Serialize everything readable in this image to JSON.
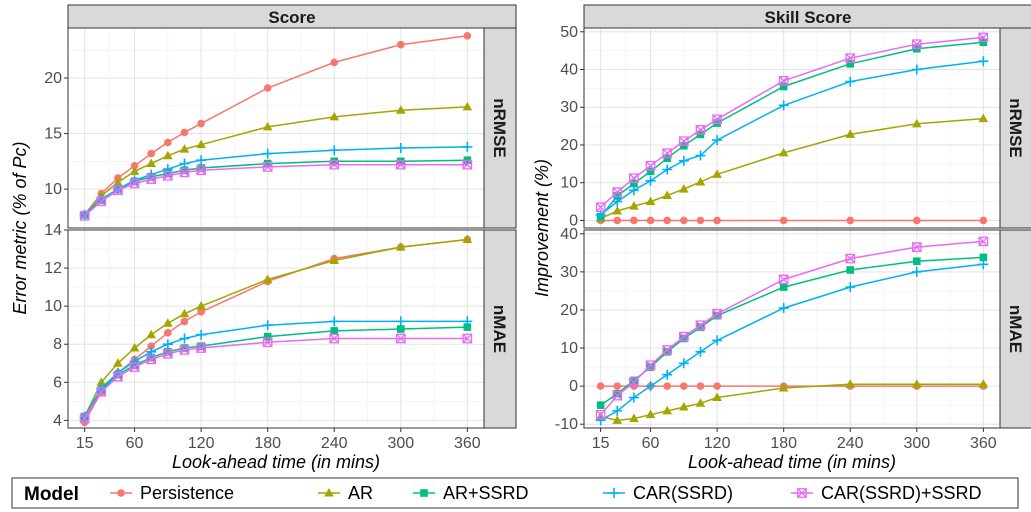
{
  "legend": {
    "title": "Model",
    "entries": [
      {
        "name": "Persistence",
        "color": "#F8766D",
        "shape": "circle"
      },
      {
        "name": "AR",
        "color": "#A3A500",
        "shape": "triangle"
      },
      {
        "name": "AR+SSRD",
        "color": "#00BF7D",
        "shape": "square"
      },
      {
        "name": "CAR(SSRD)",
        "color": "#00B0F6",
        "shape": "plus"
      },
      {
        "name": "CAR(SSRD)+SSRD",
        "color": "#E76BF3",
        "shape": "square-cross"
      }
    ]
  },
  "chart_data": [
    {
      "type": "line",
      "panel_column": "Score",
      "panel_row": "nRMSE",
      "ylabel": "Error metric (% of Pc)",
      "xlabel": "Look-ahead time (in mins)",
      "ylim": [
        6.5,
        24.5
      ],
      "yticks": [
        10,
        15,
        20
      ],
      "x": [
        15,
        30,
        45,
        60,
        75,
        90,
        105,
        120,
        180,
        240,
        300,
        360
      ],
      "xticks": [
        15,
        60,
        120,
        180,
        240,
        300,
        360
      ],
      "xtick_labels": [
        "15",
        "60",
        "120",
        "180",
        "240",
        "300",
        "360"
      ],
      "series": [
        {
          "name": "Persistence",
          "values": [
            7.7,
            9.6,
            11.0,
            12.1,
            13.2,
            14.2,
            15.1,
            15.9,
            19.1,
            21.4,
            23.0,
            23.8
          ]
        },
        {
          "name": "AR",
          "values": [
            7.7,
            9.4,
            10.6,
            11.6,
            12.3,
            13.0,
            13.6,
            14.0,
            15.6,
            16.5,
            17.1,
            17.4
          ]
        },
        {
          "name": "AR+SSRD",
          "values": [
            7.7,
            9.0,
            10.0,
            10.7,
            11.1,
            11.4,
            11.7,
            11.9,
            12.3,
            12.5,
            12.5,
            12.6
          ]
        },
        {
          "name": "CAR(SSRD)",
          "values": [
            7.7,
            9.1,
            10.0,
            10.8,
            11.3,
            11.8,
            12.3,
            12.6,
            13.2,
            13.5,
            13.7,
            13.8
          ]
        },
        {
          "name": "CAR(SSRD)+SSRD",
          "values": [
            7.6,
            8.9,
            9.9,
            10.5,
            10.9,
            11.2,
            11.5,
            11.7,
            12.0,
            12.2,
            12.2,
            12.2
          ]
        }
      ]
    },
    {
      "type": "line",
      "panel_column": "Skill Score",
      "panel_row": "nRMSE",
      "ylabel": "Improvement (%)",
      "xlabel": "Look-ahead time (in mins)",
      "ylim": [
        -2,
        51
      ],
      "yticks": [
        0,
        10,
        20,
        30,
        40,
        50
      ],
      "x": [
        15,
        30,
        45,
        60,
        75,
        90,
        105,
        120,
        180,
        240,
        300,
        360
      ],
      "xticks": [
        15,
        60,
        120,
        180,
        240,
        300,
        360
      ],
      "xtick_labels": [
        "15",
        "60",
        "120",
        "180",
        "240",
        "300",
        "360"
      ],
      "series": [
        {
          "name": "Persistence",
          "values": [
            0,
            0,
            0,
            0,
            0,
            0,
            0,
            0,
            0,
            0,
            0,
            0
          ]
        },
        {
          "name": "AR",
          "values": [
            0.5,
            2.5,
            3.8,
            5.0,
            6.6,
            8.3,
            10.2,
            12.2,
            17.9,
            22.8,
            25.6,
            27.0
          ]
        },
        {
          "name": "AR+SSRD",
          "values": [
            1.0,
            6.5,
            9.8,
            13.0,
            16.5,
            19.8,
            22.8,
            25.8,
            35.5,
            41.5,
            45.5,
            47.2
          ]
        },
        {
          "name": "CAR(SSRD)",
          "values": [
            1.5,
            5.0,
            8.0,
            10.5,
            13.5,
            15.8,
            17.2,
            21.3,
            30.5,
            36.8,
            40.0,
            42.2
          ]
        },
        {
          "name": "CAR(SSRD)+SSRD",
          "values": [
            3.5,
            7.5,
            11.2,
            14.5,
            17.8,
            21.0,
            24.0,
            26.8,
            37.0,
            43.0,
            46.7,
            48.5
          ]
        }
      ]
    },
    {
      "type": "line",
      "panel_column": "Score",
      "panel_row": "nMAE",
      "ylabel": "Error metric (% of Pc)",
      "xlabel": "Look-ahead time (in mins)",
      "ylim": [
        3.6,
        14.0
      ],
      "yticks": [
        4,
        6,
        8,
        10,
        12,
        14
      ],
      "x": [
        15,
        30,
        45,
        60,
        75,
        90,
        105,
        120,
        180,
        240,
        300,
        360
      ],
      "xticks": [
        15,
        60,
        120,
        180,
        240,
        300,
        360
      ],
      "xtick_labels": [
        "15",
        "60",
        "120",
        "180",
        "240",
        "300",
        "360"
      ],
      "series": [
        {
          "name": "Persistence",
          "values": [
            3.9,
            5.5,
            6.5,
            7.2,
            7.9,
            8.6,
            9.2,
            9.7,
            11.3,
            12.5,
            13.1,
            13.5
          ]
        },
        {
          "name": "AR",
          "values": [
            4.2,
            6.0,
            7.0,
            7.8,
            8.5,
            9.1,
            9.6,
            10.0,
            11.4,
            12.4,
            13.1,
            13.5
          ]
        },
        {
          "name": "AR+SSRD",
          "values": [
            4.2,
            5.6,
            6.4,
            6.9,
            7.3,
            7.6,
            7.8,
            7.9,
            8.4,
            8.7,
            8.8,
            8.9
          ]
        },
        {
          "name": "CAR(SSRD)",
          "values": [
            4.2,
            5.7,
            6.5,
            7.1,
            7.6,
            8.0,
            8.3,
            8.5,
            9.0,
            9.2,
            9.2,
            9.2
          ]
        },
        {
          "name": "CAR(SSRD)+SSRD",
          "values": [
            4.1,
            5.5,
            6.3,
            6.8,
            7.2,
            7.5,
            7.7,
            7.8,
            8.1,
            8.3,
            8.3,
            8.3
          ]
        }
      ]
    },
    {
      "type": "line",
      "panel_column": "Skill Score",
      "panel_row": "nMAE",
      "ylabel": "Improvement (%)",
      "xlabel": "Look-ahead time (in mins)",
      "ylim": [
        -11,
        41
      ],
      "yticks": [
        -10,
        0,
        10,
        20,
        30,
        40
      ],
      "x": [
        15,
        30,
        45,
        60,
        75,
        90,
        105,
        120,
        180,
        240,
        300,
        360
      ],
      "xticks": [
        15,
        60,
        120,
        180,
        240,
        300,
        360
      ],
      "xtick_labels": [
        "15",
        "60",
        "120",
        "180",
        "240",
        "300",
        "360"
      ],
      "series": [
        {
          "name": "Persistence",
          "values": [
            0,
            0,
            0,
            0,
            0,
            0,
            0,
            0,
            0,
            0,
            0,
            0
          ]
        },
        {
          "name": "AR",
          "values": [
            -8,
            -9,
            -8.5,
            -7.5,
            -6.5,
            -5.5,
            -4.5,
            -3,
            -0.5,
            0.5,
            0.5,
            0.5
          ]
        },
        {
          "name": "AR+SSRD",
          "values": [
            -5,
            -2,
            1.5,
            5.0,
            9.0,
            12.5,
            15.5,
            18.5,
            26.0,
            30.5,
            32.8,
            33.8
          ]
        },
        {
          "name": "CAR(SSRD)",
          "values": [
            -9,
            -6.5,
            -3,
            0,
            3,
            6,
            9,
            12,
            20.5,
            26,
            30,
            32
          ]
        },
        {
          "name": "CAR(SSRD)+SSRD",
          "values": [
            -7.5,
            -2.5,
            1.0,
            5.5,
            9.5,
            13.0,
            16.0,
            19.0,
            28.0,
            33.5,
            36.5,
            38.0
          ]
        }
      ]
    }
  ]
}
